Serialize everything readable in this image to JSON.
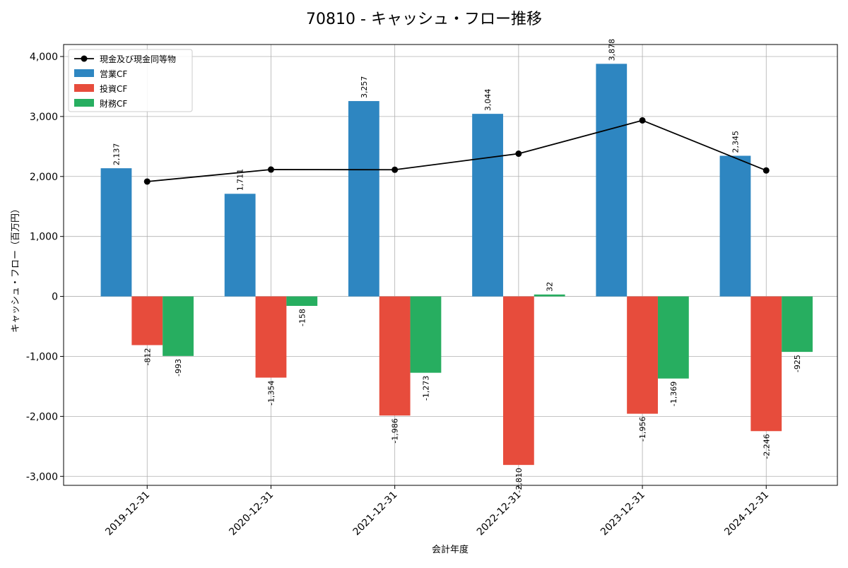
{
  "chart_data": {
    "type": "bar",
    "title": "70810 - キャッシュ・フロー推移",
    "xlabel": "会計年度",
    "ylabel": "キャッシュ・フロー（百万円）",
    "categories": [
      "2019-12-31",
      "2020-12-31",
      "2021-12-31",
      "2022-12-31",
      "2023-12-31",
      "2024-12-31"
    ],
    "ylim": [
      -3150,
      4200
    ],
    "yticks": [
      -3000,
      -2000,
      -1000,
      0,
      1000,
      2000,
      3000,
      4000
    ],
    "ytick_labels": [
      "-3,000",
      "-2,000",
      "-1,000",
      "0",
      "1,000",
      "2,000",
      "3,000",
      "4,000"
    ],
    "grid": true,
    "legend_position": "top-left",
    "series": [
      {
        "name": "営業CF",
        "kind": "bar",
        "color": "#2e86c1",
        "values": [
          2137,
          1711,
          3257,
          3044,
          3878,
          2345
        ],
        "labels": [
          "2,137",
          "1,711",
          "3,257",
          "3,044",
          "3,878",
          "2,345"
        ]
      },
      {
        "name": "投資CF",
        "kind": "bar",
        "color": "#e74c3c",
        "values": [
          -812,
          -1354,
          -1986,
          -2810,
          -1956,
          -2246
        ],
        "labels": [
          "-812",
          "-1,354",
          "-1,986",
          "-2,810",
          "-1,956",
          "-2,246"
        ]
      },
      {
        "name": "財務CF",
        "kind": "bar",
        "color": "#27ae60",
        "values": [
          -993,
          -158,
          -1273,
          32,
          -1369,
          -925
        ],
        "labels": [
          "-993",
          "-158",
          "-1,273",
          "32",
          "-1,369",
          "-925"
        ]
      }
    ],
    "line_series": {
      "name": "現金及び現金同等物",
      "kind": "line",
      "color": "#000000",
      "values": [
        1915,
        2115,
        2112,
        2380,
        2935,
        2100
      ]
    }
  }
}
